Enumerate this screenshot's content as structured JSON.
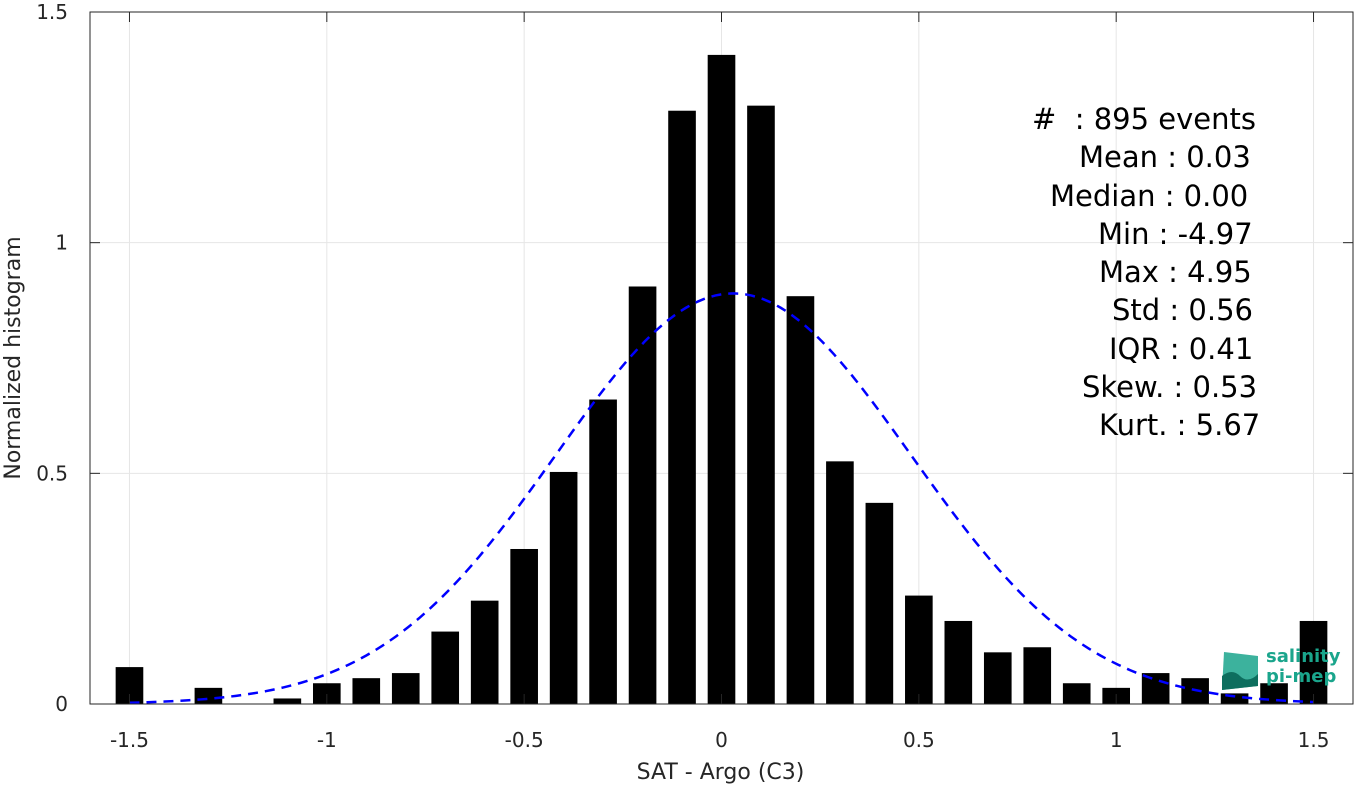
{
  "chart_data": {
    "type": "bar",
    "xlabel": "SAT - Argo (C3)",
    "ylabel": "Normalized histogram",
    "xlim": [
      -1.6,
      1.6
    ],
    "ylim": [
      0,
      1.5
    ],
    "xticks": [
      -1.5,
      -1,
      -0.5,
      0,
      0.5,
      1,
      1.5
    ],
    "xtick_labels": [
      "-1.5",
      "-1",
      "-0.5",
      "0",
      "0.5",
      "1",
      "1.5"
    ],
    "yticks": [
      0,
      0.5,
      1,
      1.5
    ],
    "ytick_labels": [
      "0",
      "0.5",
      "1",
      "1.5"
    ],
    "grid": true,
    "bar_width": 0.07,
    "bar_color": "#000000",
    "bins": [
      -1.5,
      -1.4,
      -1.3,
      -1.2,
      -1.1,
      -1.0,
      -0.9,
      -0.8,
      -0.7,
      -0.6,
      -0.5,
      -0.4,
      -0.3,
      -0.2,
      -0.1,
      0.0,
      0.1,
      0.2,
      0.3,
      0.4,
      0.5,
      0.6,
      0.7,
      0.8,
      0.9,
      1.0,
      1.1,
      1.2,
      1.3,
      1.4,
      1.5
    ],
    "values": [
      0.08,
      0.0,
      0.035,
      0.0,
      0.012,
      0.045,
      0.056,
      0.067,
      0.157,
      0.224,
      0.336,
      0.503,
      0.66,
      0.905,
      1.286,
      1.407,
      1.297,
      0.884,
      0.526,
      0.436,
      0.235,
      0.18,
      0.112,
      0.123,
      0.045,
      0.035,
      0.067,
      0.056,
      0.023,
      0.045,
      0.18
    ],
    "fit_curve": {
      "type": "gaussian",
      "mean": 0.03,
      "std": 0.45,
      "peak": 0.89,
      "x_range": [
        -1.5,
        1.5
      ],
      "color": "#0000ff",
      "style": "dashed"
    }
  },
  "stats": {
    "count": "#  : 895 events",
    "mean": "Mean : 0.03",
    "median": "Median : 0.00",
    "min": "Min : -4.97",
    "max": "Max : 4.95",
    "std": "Std : 0.56",
    "iqr": "IQR : 0.41",
    "skew": "Skew. : 0.53",
    "kurt": "Kurt. : 5.67"
  },
  "logo": {
    "line1": "salinity",
    "line2": "pi-mep"
  }
}
